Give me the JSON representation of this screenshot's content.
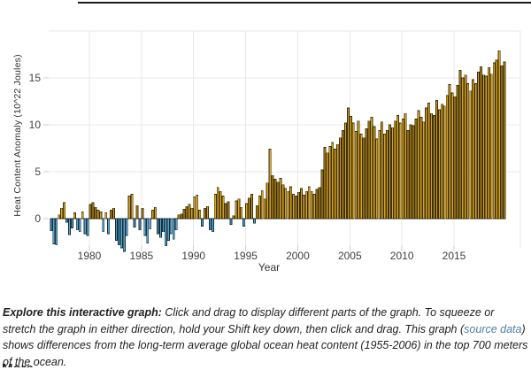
{
  "page": {
    "background_color": "#ffffff",
    "top_rule_color": "#1a1a1a"
  },
  "chart": {
    "y_axis_title": "Heat Content Anomaly (10^22 Joules)",
    "x_axis_title": "Year",
    "x_tick_labels": [
      1980,
      1985,
      1990,
      1995,
      2000,
      2005,
      2010,
      2015
    ],
    "y_tick_labels": [
      0,
      5,
      10,
      15
    ],
    "y_gridline_values": [
      5,
      10,
      15,
      20
    ],
    "gridline_color": "#e8e8e8",
    "tick_mark_color": "#cccccc",
    "tick_text_color": "#404040"
  },
  "chart_data": {
    "type": "bar",
    "title": "",
    "xlabel": "Year",
    "ylabel": "Heat Content Anomaly (10^22 Joules)",
    "x_start": 1976.25,
    "x_step": 0.25,
    "xlim": [
      1975.6,
      2021.4
    ],
    "ylim": [
      -4,
      20
    ],
    "grid": true,
    "legend": "none",
    "positive_color": "#D4A02A",
    "positive_stroke": "#3b2f05",
    "negative_color": "#5EA2C8",
    "negative_stroke": "#14303f",
    "values": [
      -1.3,
      -2.7,
      -2.8,
      0.4,
      1.1,
      1.7,
      -0.4,
      -1.7,
      -1.0,
      0.6,
      -1.2,
      -1.4,
      0.7,
      -1.6,
      -1.8,
      1.5,
      1.7,
      1.2,
      0.9,
      0.7,
      -1.4,
      0.6,
      -1.6,
      0.9,
      1.1,
      -2.3,
      -2.8,
      -3.1,
      -3.5,
      -1.8,
      2.4,
      2.6,
      -0.9,
      1.4,
      -1.2,
      1.1,
      -1.8,
      -2.6,
      -1.1,
      0.9,
      1.2,
      -1.6,
      -2.0,
      -1.4,
      -2.9,
      -2.3,
      -1.6,
      -2.2,
      -1.2,
      0.4,
      0.5,
      1.0,
      1.3,
      1.5,
      1.1,
      2.3,
      2.5,
      0.9,
      -0.8,
      1.1,
      1.3,
      -1.2,
      -1.4,
      2.6,
      3.3,
      2.9,
      2.4,
      1.6,
      1.8,
      -0.6,
      0.3,
      1.9,
      2.1,
      1.2,
      -0.8,
      1.6,
      2.2,
      2.6,
      -0.5,
      1.4,
      2.4,
      3.0,
      2.1,
      3.8,
      7.4,
      4.6,
      4.2,
      3.9,
      4.3,
      3.6,
      3.2,
      2.9,
      3.4,
      2.6,
      2.4,
      2.8,
      3.2,
      2.5,
      2.9,
      3.4,
      2.9,
      2.6,
      3.1,
      3.3,
      5.2,
      7.6,
      7.0,
      7.7,
      8.1,
      7.4,
      7.9,
      8.6,
      9.4,
      10.2,
      11.8,
      10.9,
      10.2,
      9.3,
      10.4,
      9.0,
      8.6,
      9.6,
      10.4,
      10.8,
      9.8,
      8.5,
      9.4,
      10.3,
      9.0,
      9.4,
      10.0,
      9.7,
      10.4,
      11.0,
      10.2,
      10.6,
      11.2,
      9.4,
      10.0,
      9.9,
      10.6,
      11.5,
      10.8,
      10.3,
      11.8,
      12.3,
      11.2,
      11.0,
      12.6,
      11.6,
      12.2,
      12.0,
      13.1,
      14.3,
      13.4,
      13.0,
      14.2,
      15.8,
      15.0,
      15.3,
      14.4,
      13.6,
      14.8,
      14.4,
      15.6,
      16.2,
      15.3,
      15.2,
      16.1,
      15.4,
      16.6,
      16.9,
      17.9,
      16.3,
      16.7
    ]
  },
  "caption": {
    "lead": "Explore this interactive graph:",
    "body_before_link": " Click and drag to display different parts of the graph. To squeeze or stretch the graph in either direction, hold your Shift key down, then click and drag. This graph (",
    "link_text": "source data",
    "link_color": "#4e7fa5",
    "body_after_link": ") shows differences from the long-term average global ocean heat content (1955-2006) in the top 700 meters of the ocean."
  },
  "next_section_fragment": {
    "text": "More..."
  }
}
